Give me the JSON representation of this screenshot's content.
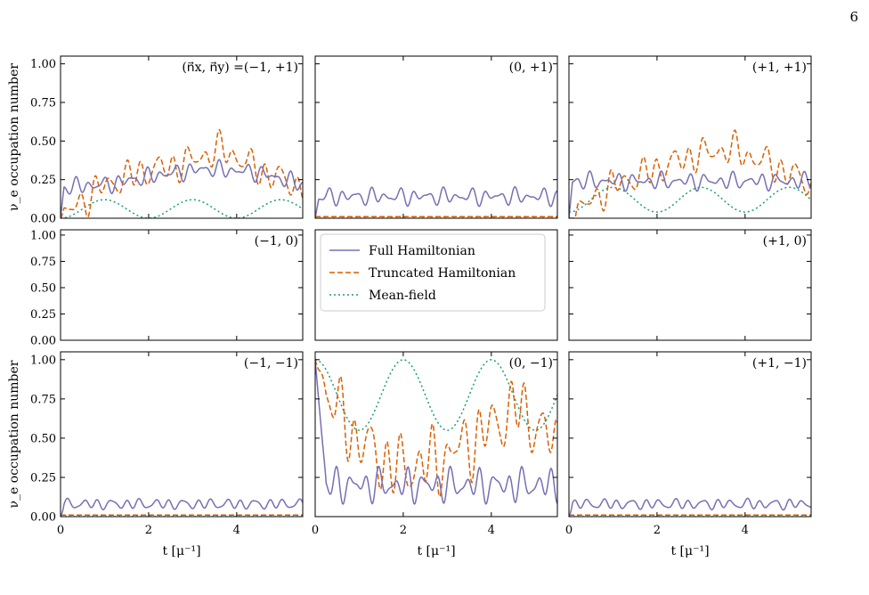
{
  "page_number": "6",
  "colors": {
    "full": "#7570b3",
    "truncated": "#d95f02",
    "meanfield": "#1b9e77"
  },
  "legend": {
    "entries": [
      {
        "label": "Full Hamiltonian",
        "style": "solid",
        "color": "#7570b3"
      },
      {
        "label": "Truncated Hamiltonian",
        "style": "dashed",
        "color": "#d95f02"
      },
      {
        "label": "Mean-field",
        "style": "dotted",
        "color": "#1b9e77"
      }
    ],
    "placement": "center panel (middle row, middle column)"
  },
  "chart_data": {
    "type": "line",
    "layout": "3x3 grid of line panels, shared axes",
    "ylabel": "ν_e occupation number",
    "xlabel": "t [μ⁻¹]",
    "xlim": [
      0,
      5.5
    ],
    "ylim": [
      0,
      1.05
    ],
    "xticks": [
      0,
      2,
      4
    ],
    "yticks": [
      "0.00",
      "0.25",
      "0.50",
      "0.75",
      "1.00"
    ],
    "panels": [
      {
        "id": "m1p1",
        "label": "(n⃗x, n⃗y) =(−1, +1)",
        "row": 0,
        "col": 0,
        "has_data": true,
        "series": {
          "full": {
            "style": "oscillating",
            "base": 0.22,
            "amp": 0.06,
            "trend": [
              0.2,
              0.22,
              0.28,
              0.32,
              0.3,
              0.22
            ]
          },
          "truncated": {
            "style": "oscillating",
            "envelope_knots": [
              0.0,
              0.2,
              0.3,
              0.35,
              0.45,
              0.3,
              0.2
            ],
            "amp": 0.12
          },
          "meanfield": {
            "period": 2.0,
            "min": 0.0,
            "max": 0.12,
            "start": 0.0
          }
        }
      },
      {
        "id": "0p1",
        "label": "(0, +1)",
        "row": 0,
        "col": 1,
        "has_data": true,
        "series": {
          "full": {
            "style": "oscillating",
            "base": 0.14,
            "amp": 0.06
          },
          "truncated": {
            "style": "flat",
            "value": 0.01
          },
          "meanfield": {
            "style": "flat",
            "value": 0.0
          }
        }
      },
      {
        "id": "p1p1",
        "label": "(+1, +1)",
        "row": 0,
        "col": 2,
        "has_data": true,
        "series": {
          "full": {
            "style": "oscillating",
            "base": 0.24,
            "amp": 0.06
          },
          "truncated": {
            "style": "oscillating",
            "envelope_knots": [
              0.0,
              0.2,
              0.3,
              0.4,
              0.45,
              0.35,
              0.22
            ],
            "amp": 0.12
          },
          "meanfield": {
            "period": 2.0,
            "min": 0.04,
            "max": 0.2,
            "start": 0.0
          }
        }
      },
      {
        "id": "m10",
        "label": "(−1, 0)",
        "row": 1,
        "col": 0,
        "has_data": false
      },
      {
        "id": "00",
        "label": "",
        "row": 1,
        "col": 1,
        "has_data": false,
        "is_legend": true
      },
      {
        "id": "p10",
        "label": "(+1, 0)",
        "row": 1,
        "col": 2,
        "has_data": false
      },
      {
        "id": "m1m1",
        "label": "(−1, −1)",
        "row": 2,
        "col": 0,
        "has_data": true,
        "series": {
          "full": {
            "style": "oscillating",
            "base": 0.08,
            "amp": 0.04
          },
          "truncated": {
            "style": "flat",
            "value": 0.01
          },
          "meanfield": {
            "style": "flat",
            "value": 0.0
          }
        }
      },
      {
        "id": "0m1",
        "label": "(0, −1)",
        "row": 2,
        "col": 1,
        "has_data": true,
        "series": {
          "full": {
            "style": "oscillating",
            "base": 0.2,
            "amp": 0.12,
            "start": 1.0
          },
          "truncated": {
            "style": "oscillating",
            "envelope_knots": [
              0.9,
              0.5,
              0.3,
              0.35,
              0.5,
              0.7,
              0.45
            ],
            "amp": 0.25,
            "start": 1.0
          },
          "meanfield": {
            "period": 2.0,
            "min": 0.55,
            "max": 1.0,
            "start": 1.0
          }
        }
      },
      {
        "id": "p1m1",
        "label": "(+1, −1)",
        "row": 2,
        "col": 2,
        "has_data": true,
        "series": {
          "full": {
            "style": "oscillating",
            "base": 0.08,
            "amp": 0.04
          },
          "truncated": {
            "style": "flat",
            "value": 0.01
          },
          "meanfield": {
            "style": "flat",
            "value": 0.0
          }
        }
      }
    ]
  }
}
